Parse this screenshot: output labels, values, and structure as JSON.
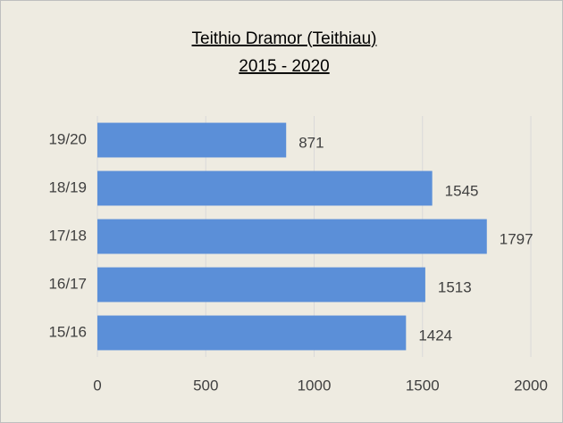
{
  "chart_data": {
    "type": "hbar",
    "title": "Teithio Dramor (Teithiau)",
    "subtitle": "2015 - 2020",
    "categories": [
      "15/16",
      "16/17",
      "17/18",
      "18/19",
      "19/20"
    ],
    "values": [
      1424,
      1513,
      1797,
      1545,
      871
    ],
    "color": "#5b8fd8",
    "xlim": [
      0,
      2000
    ],
    "xticks": [
      0,
      500,
      1000,
      1500,
      2000
    ],
    "grid": true
  }
}
